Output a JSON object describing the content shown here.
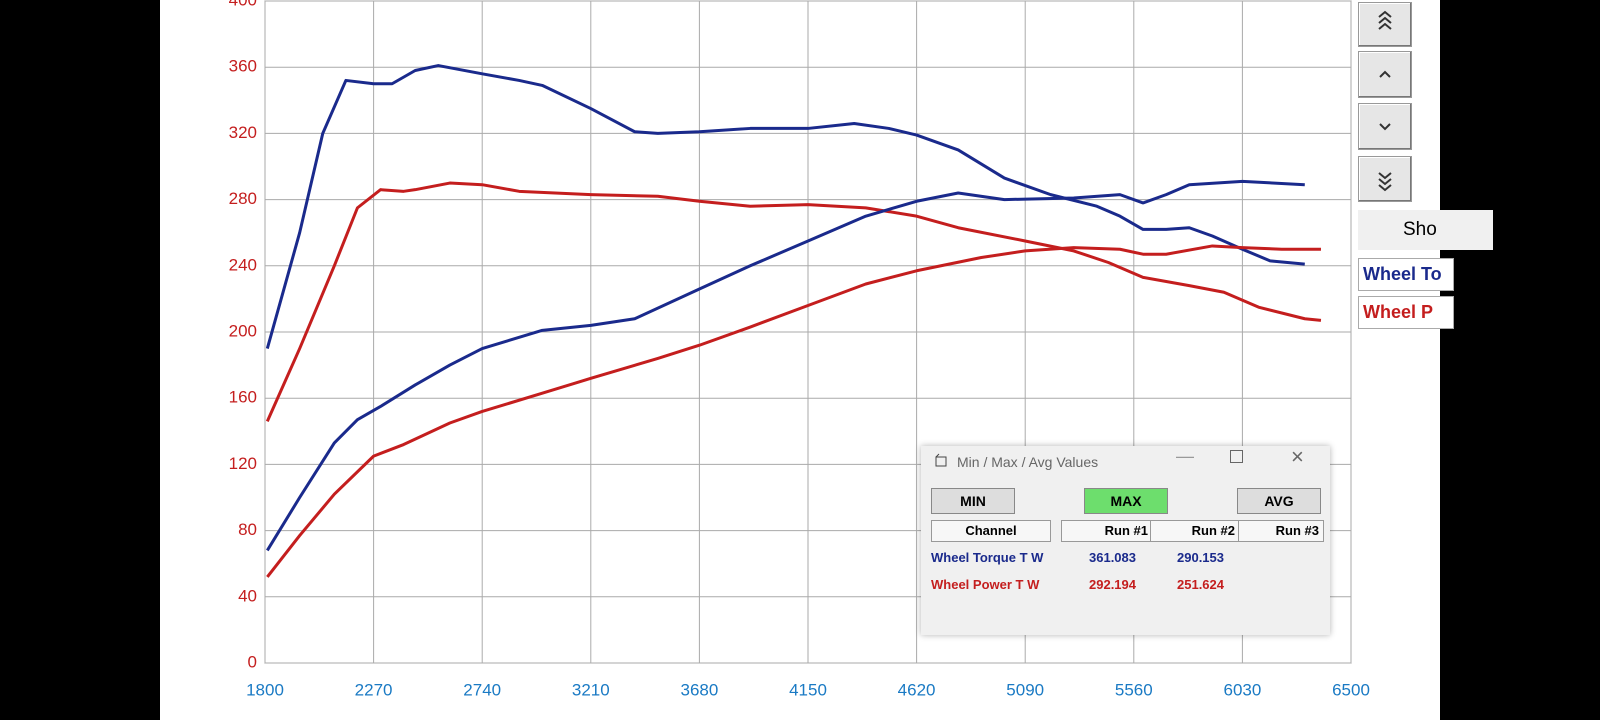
{
  "chart_data": {
    "type": "line",
    "xlim": [
      1800,
      6500
    ],
    "xticks": [
      1800,
      2270,
      2740,
      3210,
      3680,
      4150,
      4620,
      5090,
      5560,
      6030,
      6500
    ],
    "ylim": [
      0,
      400
    ],
    "yticks": [
      0,
      40,
      80,
      120,
      160,
      200,
      240,
      280,
      320,
      360,
      400
    ],
    "grid": true,
    "series": [
      {
        "color": "#1a2a8c",
        "x": [
          1810,
          1950,
          2050,
          2150,
          2270,
          2350,
          2450,
          2550,
          2740,
          2900,
          3000,
          3210,
          3400,
          3500,
          3680,
          3900,
          4150,
          4350,
          4500,
          4620,
          4800,
          5000,
          5200,
          5400,
          5500,
          5600,
          5700,
          5800,
          5900,
          6030,
          6150,
          6300
        ],
        "values": [
          190,
          260,
          320,
          352,
          350,
          350,
          358,
          361,
          356,
          352,
          349,
          335,
          321,
          320,
          321,
          323,
          323,
          326,
          323,
          319,
          310,
          293,
          283,
          276,
          270,
          262,
          262,
          263,
          258,
          250,
          243,
          241
        ]
      },
      {
        "color": "#c41e1e",
        "x": [
          1810,
          1950,
          2100,
          2200,
          2300,
          2400,
          2450,
          2600,
          2740,
          2900,
          3210,
          3500,
          3680,
          3900,
          4150,
          4400,
          4620,
          4800,
          5090,
          5300,
          5450,
          5600,
          5800,
          5950,
          6100,
          6300,
          6370
        ],
        "values": [
          146,
          190,
          240,
          275,
          286,
          285,
          286,
          290,
          289,
          285,
          283,
          282,
          279,
          276,
          277,
          275,
          270,
          263,
          255,
          249,
          242,
          233,
          228,
          224,
          215,
          208,
          207
        ]
      },
      {
        "color": "#1a2a8c",
        "x": [
          1810,
          1950,
          2100,
          2200,
          2300,
          2450,
          2600,
          2740,
          3000,
          3210,
          3400,
          3680,
          3900,
          4150,
          4400,
          4620,
          4800,
          5000,
          5300,
          5500,
          5600,
          5700,
          5800,
          6030,
          6300
        ],
        "values": [
          68,
          100,
          133,
          147,
          155,
          168,
          180,
          190,
          201,
          204,
          208,
          226,
          240,
          255,
          270,
          279,
          284,
          280,
          281,
          283,
          278,
          283,
          289,
          291,
          289
        ]
      },
      {
        "color": "#c41e1e",
        "x": [
          1810,
          1950,
          2100,
          2270,
          2400,
          2600,
          2740,
          3000,
          3210,
          3500,
          3680,
          3900,
          4150,
          4400,
          4620,
          4900,
          5090,
          5300,
          5500,
          5600,
          5700,
          5900,
          6030,
          6200,
          6370
        ],
        "values": [
          52,
          77,
          102,
          125,
          132,
          145,
          152,
          163,
          172,
          184,
          192,
          203,
          216,
          229,
          237,
          245,
          249,
          251,
          250,
          247,
          247,
          252,
          251,
          250,
          250
        ]
      }
    ]
  },
  "sidebar": {
    "show_button": "Sho",
    "legend": [
      "Wheel To",
      "Wheel P"
    ]
  },
  "dialog": {
    "title": "Min / Max / Avg Values",
    "buttons": [
      "MIN",
      "MAX",
      "AVG"
    ],
    "headers": [
      "Channel",
      "Run #1",
      "Run #2",
      "Run #3"
    ],
    "rows": [
      [
        "Wheel Torque T W",
        "361.083",
        "290.153"
      ],
      [
        "Wheel Power T W",
        "292.194",
        "251.624"
      ]
    ]
  }
}
